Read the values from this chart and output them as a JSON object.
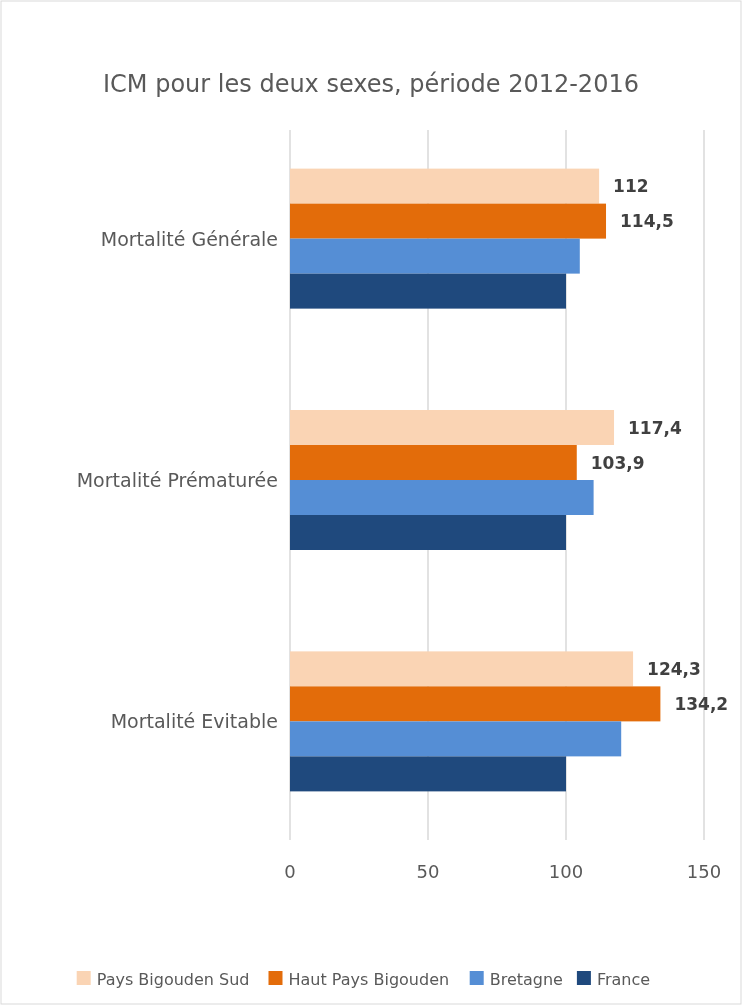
{
  "chart_data": {
    "type": "bar",
    "orientation": "horizontal",
    "title": "ICM pour les deux sexes, période 2012-2016",
    "categories": [
      "Mortalité Générale",
      "Mortalité Prématurée",
      "Mortalité Evitable"
    ],
    "series": [
      {
        "name": "Pays Bigouden Sud",
        "color": "#fad4b4",
        "values": [
          112,
          117.4,
          124.3
        ],
        "value_labels": [
          "112",
          "117,4",
          "124,3"
        ]
      },
      {
        "name": "Haut Pays Bigouden",
        "color": "#e36c0a",
        "values": [
          114.5,
          103.9,
          134.2
        ],
        "value_labels": [
          "114,5",
          "103,9",
          "134,2"
        ]
      },
      {
        "name": "Bretagne",
        "color": "#558ed5",
        "values": [
          105,
          110,
          120
        ]
      },
      {
        "name": "France",
        "color": "#1f497d",
        "values": [
          100,
          100,
          100
        ]
      }
    ],
    "xlim": [
      0,
      150
    ],
    "xticks": [
      0,
      50,
      100,
      150
    ],
    "grid": "x",
    "legend": "bottom"
  }
}
